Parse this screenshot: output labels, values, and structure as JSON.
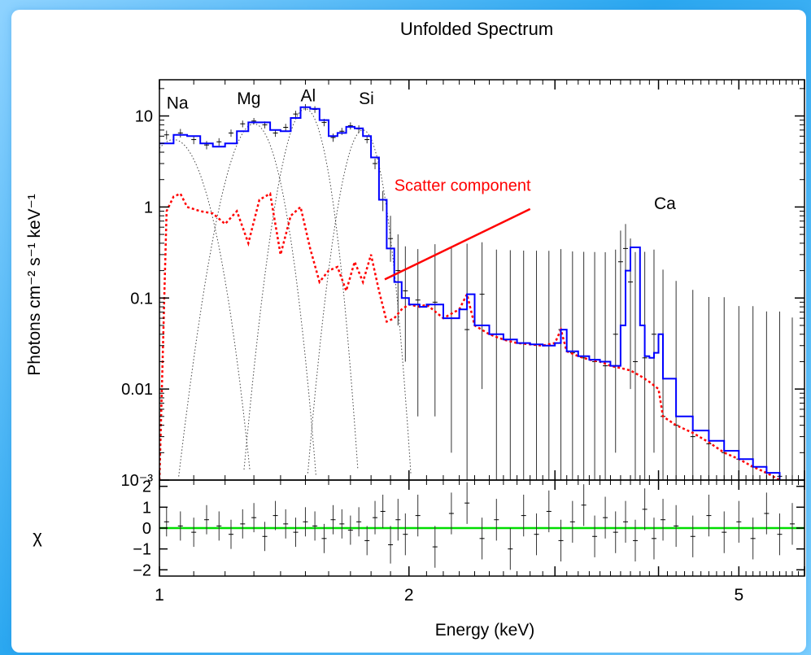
{
  "chart_data": [
    {
      "type": "line",
      "title": "Unfolded Spectrum",
      "xlabel": "",
      "ylabel": "Photons cm⁻² s⁻¹ keV⁻¹",
      "xscale": "log",
      "yscale": "log",
      "xlim": [
        1.0,
        6.0
      ],
      "ylim": [
        0.001,
        25
      ],
      "y_ticks": [
        {
          "value": 10,
          "label": "10"
        },
        {
          "value": 1,
          "label": "1"
        },
        {
          "value": 0.1,
          "label": "0.1"
        },
        {
          "value": 0.01,
          "label": "0.01"
        },
        {
          "value": 0.001,
          "label": "10⁻³"
        }
      ],
      "line_labels": [
        {
          "text": "Na",
          "x": 1.02,
          "y": 12
        },
        {
          "text": "Mg",
          "x": 1.24,
          "y": 13.5
        },
        {
          "text": "Al",
          "x": 1.48,
          "y": 14.5
        },
        {
          "text": "Si",
          "x": 1.74,
          "y": 13.5
        },
        {
          "text": "Ca",
          "x": 3.95,
          "y": 0.95
        }
      ],
      "annotation": {
        "text": "Scatter component",
        "color": "#ff0000",
        "arrow_from": [
          2.8,
          0.95
        ],
        "arrow_to": [
          1.87,
          0.16
        ]
      },
      "series": [
        {
          "role": "data",
          "color": "#000000",
          "x": [
            1.02,
            1.06,
            1.1,
            1.14,
            1.18,
            1.22,
            1.26,
            1.3,
            1.34,
            1.38,
            1.42,
            1.46,
            1.5,
            1.54,
            1.58,
            1.62,
            1.66,
            1.7,
            1.74,
            1.78,
            1.82,
            1.86,
            1.9,
            1.94,
            1.98,
            2.05,
            2.15,
            2.25,
            2.35,
            2.45,
            2.55,
            2.65,
            2.75,
            2.85,
            2.95,
            3.05,
            3.15,
            3.25,
            3.35,
            3.45,
            3.55,
            3.6,
            3.65,
            3.7,
            3.75,
            3.85,
            3.95,
            4.05,
            4.2,
            4.4,
            4.6,
            4.8,
            5.0,
            5.2,
            5.4,
            5.6,
            5.8
          ],
          "y": [
            6.2,
            6.5,
            5.5,
            4.8,
            5.2,
            6.5,
            8.2,
            8.8,
            8.0,
            6.5,
            7.5,
            10.5,
            12.5,
            11.8,
            8.5,
            5.8,
            6.8,
            7.8,
            7.2,
            5.5,
            3.0,
            1.2,
            0.45,
            0.2,
            0.12,
            0.095,
            0.09,
            0.06,
            0.045,
            0.11,
            0.04,
            0.035,
            0.032,
            0.031,
            0.03,
            0.045,
            0.025,
            0.022,
            0.02,
            0.018,
            0.04,
            0.25,
            0.35,
            0.15,
            0.02,
            0.022,
            0.04,
            0.005,
            0.004,
            0.003,
            0.0025,
            0.002,
            0.0017,
            0.0014,
            0.0012,
            0.0011,
            0.001
          ],
          "err_hi": [
            0.7,
            0.7,
            0.6,
            0.5,
            0.5,
            0.6,
            0.7,
            0.7,
            0.7,
            0.6,
            0.7,
            0.9,
            1.0,
            1.0,
            0.8,
            0.6,
            0.6,
            0.7,
            0.7,
            0.5,
            0.4,
            0.3,
            0.35,
            0.3,
            0.25,
            0.25,
            0.3,
            0.3,
            0.35,
            0.3,
            0.3,
            0.3,
            0.3,
            0.3,
            0.3,
            0.3,
            0.3,
            0.3,
            0.3,
            0.3,
            0.3,
            0.3,
            0.3,
            0.3,
            0.3,
            0.3,
            0.3,
            0.2,
            0.15,
            0.12,
            0.1,
            0.1,
            0.08,
            0.08,
            0.07,
            0.07,
            0.06
          ],
          "err_lo": [
            0.7,
            0.7,
            0.6,
            0.5,
            0.5,
            0.6,
            0.7,
            0.7,
            0.7,
            0.6,
            0.7,
            0.9,
            1.0,
            1.0,
            0.8,
            0.6,
            0.6,
            0.7,
            0.7,
            0.5,
            0.4,
            0.3,
            0.2,
            0.15,
            0.1,
            0.09,
            0.085,
            0.058,
            0.044,
            0.1,
            0.039,
            0.034,
            0.031,
            0.03,
            0.029,
            0.044,
            0.024,
            0.021,
            0.019,
            0.017,
            0.038,
            0.2,
            0.25,
            0.14,
            0.019,
            0.021,
            0.038,
            0.0049,
            0.0039,
            0.0029,
            0.0024,
            0.0019,
            0.0016,
            0.0013,
            0.0011,
            0.00105,
            0.00095
          ]
        },
        {
          "role": "total-model",
          "color": "#0000ff",
          "x": [
            1.0,
            1.04,
            1.08,
            1.12,
            1.16,
            1.2,
            1.24,
            1.28,
            1.32,
            1.36,
            1.4,
            1.44,
            1.48,
            1.52,
            1.56,
            1.6,
            1.64,
            1.68,
            1.72,
            1.76,
            1.8,
            1.84,
            1.88,
            1.92,
            1.96,
            2.0,
            2.06,
            2.1,
            2.2,
            2.3,
            2.35,
            2.4,
            2.5,
            2.6,
            2.7,
            2.8,
            2.9,
            3.0,
            3.05,
            3.1,
            3.2,
            3.3,
            3.4,
            3.5,
            3.6,
            3.65,
            3.7,
            3.8,
            3.85,
            3.9,
            3.95,
            4.0,
            4.05,
            4.2,
            4.4,
            4.6,
            4.8,
            5.0,
            5.2,
            5.4,
            5.6
          ],
          "y": [
            5.0,
            6.2,
            6.0,
            5.0,
            4.6,
            5.0,
            6.8,
            8.5,
            8.5,
            7.0,
            6.8,
            9.5,
            12.5,
            12.0,
            9.0,
            6.0,
            6.5,
            7.6,
            7.3,
            6.0,
            3.5,
            1.2,
            0.35,
            0.15,
            0.1,
            0.085,
            0.08,
            0.085,
            0.06,
            0.075,
            0.11,
            0.05,
            0.04,
            0.035,
            0.032,
            0.031,
            0.03,
            0.032,
            0.045,
            0.026,
            0.023,
            0.021,
            0.02,
            0.018,
            0.05,
            0.2,
            0.36,
            0.05,
            0.023,
            0.022,
            0.025,
            0.04,
            0.013,
            0.005,
            0.0035,
            0.0027,
            0.0021,
            0.0017,
            0.0014,
            0.0012,
            0.001
          ]
        },
        {
          "role": "scatter-component",
          "color": "#ff0000",
          "x": [
            1.0,
            1.02,
            1.04,
            1.06,
            1.08,
            1.12,
            1.16,
            1.2,
            1.24,
            1.28,
            1.32,
            1.36,
            1.4,
            1.44,
            1.48,
            1.52,
            1.56,
            1.6,
            1.64,
            1.68,
            1.72,
            1.76,
            1.8,
            1.84,
            1.88,
            1.92,
            1.96,
            2.0,
            2.06,
            2.1,
            2.2,
            2.3,
            2.35,
            2.4,
            2.5,
            2.6,
            2.7,
            2.8,
            2.9,
            3.0,
            3.05,
            3.1,
            3.2,
            3.3,
            3.4,
            3.5,
            3.6,
            3.7,
            3.8,
            3.9,
            4.0,
            4.05,
            4.2,
            4.4,
            4.6,
            4.8,
            5.0,
            5.2,
            5.4,
            5.6
          ],
          "y": [
            0.001,
            0.9,
            1.3,
            1.4,
            1.0,
            0.9,
            0.85,
            0.65,
            0.9,
            0.4,
            1.2,
            1.4,
            0.3,
            0.8,
            1.0,
            0.35,
            0.15,
            0.2,
            0.22,
            0.12,
            0.25,
            0.15,
            0.3,
            0.12,
            0.055,
            0.06,
            0.075,
            0.085,
            0.08,
            0.085,
            0.06,
            0.075,
            0.11,
            0.05,
            0.04,
            0.035,
            0.032,
            0.031,
            0.03,
            0.032,
            0.045,
            0.026,
            0.023,
            0.021,
            0.02,
            0.018,
            0.017,
            0.016,
            0.014,
            0.012,
            0.01,
            0.005,
            0.004,
            0.0033,
            0.0026,
            0.002,
            0.0017,
            0.0014,
            0.0012,
            0.001
          ]
        },
        {
          "role": "line-components",
          "color": "#000000",
          "components": [
            {
              "name": "Na",
              "center": 1.04,
              "peak": 5.5,
              "sigma": 0.06
            },
            {
              "name": "Mg",
              "center": 1.3,
              "peak": 8.2,
              "sigma": 0.058
            },
            {
              "name": "Al",
              "center": 1.5,
              "peak": 12.0,
              "sigma": 0.055
            },
            {
              "name": "Si",
              "center": 1.76,
              "peak": 7.0,
              "sigma": 0.06
            }
          ]
        }
      ]
    },
    {
      "type": "scatter",
      "xlabel": "Energy (keV)",
      "ylabel": "χ",
      "xscale": "log",
      "xlim": [
        1.0,
        6.0
      ],
      "ylim": [
        -2.3,
        2.3
      ],
      "x_ticks": [
        {
          "value": 1,
          "label": "1"
        },
        {
          "value": 2,
          "label": "2"
        },
        {
          "value": 5,
          "label": "5"
        }
      ],
      "y_ticks": [
        {
          "value": 2,
          "label": "2"
        },
        {
          "value": 1,
          "label": "1"
        },
        {
          "value": 0,
          "label": "0"
        },
        {
          "value": -1,
          "label": "−1"
        },
        {
          "value": -2,
          "label": "−2"
        }
      ],
      "reference_line": {
        "y": 0,
        "color": "#00dd00"
      },
      "series": [
        {
          "role": "residuals",
          "color": "#000000",
          "x": [
            1.02,
            1.06,
            1.1,
            1.14,
            1.18,
            1.22,
            1.26,
            1.3,
            1.34,
            1.38,
            1.42,
            1.46,
            1.5,
            1.54,
            1.58,
            1.62,
            1.66,
            1.7,
            1.74,
            1.78,
            1.82,
            1.86,
            1.9,
            1.94,
            1.98,
            2.05,
            2.15,
            2.25,
            2.35,
            2.45,
            2.55,
            2.65,
            2.75,
            2.85,
            2.95,
            3.05,
            3.15,
            3.25,
            3.35,
            3.45,
            3.55,
            3.65,
            3.75,
            3.85,
            3.95,
            4.05,
            4.2,
            4.4,
            4.6,
            4.8,
            5.0,
            5.2,
            5.4,
            5.6,
            5.8
          ],
          "y": [
            0.3,
            0.1,
            -0.2,
            0.4,
            0.1,
            -0.3,
            0.2,
            0.5,
            -0.4,
            0.6,
            0.2,
            -0.2,
            0.3,
            0.1,
            -0.5,
            0.4,
            0.2,
            -0.1,
            0.3,
            -0.6,
            0.5,
            0.8,
            -0.8,
            0.4,
            -0.3,
            0.6,
            -0.9,
            0.7,
            1.2,
            -0.5,
            0.4,
            -1.0,
            0.6,
            -0.3,
            0.8,
            -0.6,
            0.3,
            1.1,
            -0.4,
            0.5,
            -0.2,
            0.3,
            -0.6,
            0.9,
            -0.5,
            0.4,
            0.1,
            -0.4,
            0.6,
            -0.2,
            0.3,
            -0.5,
            0.7,
            -0.3,
            0.2
          ],
          "err": [
            0.7,
            0.7,
            0.7,
            0.7,
            0.7,
            0.7,
            0.7,
            0.7,
            0.7,
            0.7,
            0.7,
            0.7,
            0.7,
            0.7,
            0.7,
            0.7,
            0.7,
            0.7,
            0.7,
            0.7,
            0.8,
            0.8,
            0.9,
            1.0,
            1.0,
            1.0,
            1.0,
            1.0,
            1.0,
            1.0,
            1.0,
            1.0,
            1.0,
            1.0,
            1.0,
            1.0,
            1.0,
            1.0,
            1.0,
            1.0,
            1.0,
            1.0,
            1.0,
            1.0,
            1.0,
            1.0,
            1.0,
            1.0,
            1.0,
            1.0,
            1.0,
            1.0,
            1.0,
            1.0,
            1.0
          ]
        }
      ]
    }
  ]
}
